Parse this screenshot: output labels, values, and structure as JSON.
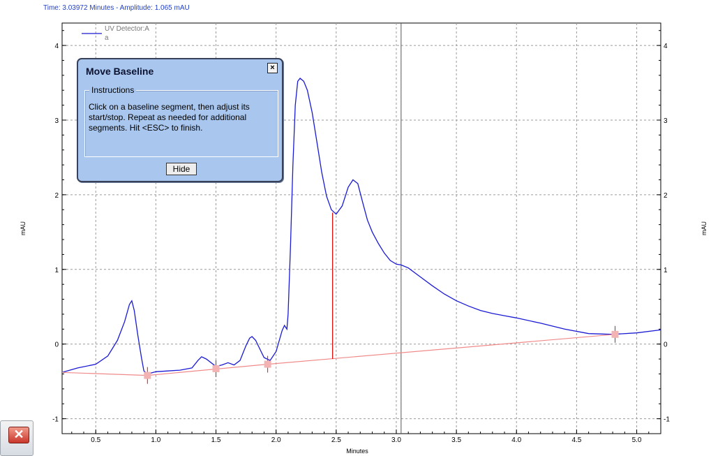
{
  "status_text": "Time:  3.03972 Minutes - Amplitude:  1.065 mAU",
  "dialog": {
    "title": "Move Baseline",
    "close_glyph": "×",
    "group_label": "Instructions",
    "instructions": "Click on a baseline segment, then adjust its start/stop. Repeat as needed for additional segments. Hit <ESC> to finish.",
    "hide_label": "Hide"
  },
  "close_widget_glyph": "✕",
  "chart_data": {
    "type": "line",
    "xlabel": "Minutes",
    "ylabel": "mAU",
    "ylabel_right": "mAU",
    "xlim": [
      0.22,
      5.2
    ],
    "ylim": [
      -1.2,
      4.3
    ],
    "xticks": [
      0.5,
      1.0,
      1.5,
      2.0,
      2.5,
      3.0,
      3.5,
      4.0,
      4.5,
      5.0
    ],
    "xtick_labels": [
      "0.5",
      "1.0",
      "1.5",
      "2.0",
      "2.5",
      "3.0",
      "3.5",
      "4.0",
      "4.5",
      "5.0"
    ],
    "yticks": [
      -1,
      0,
      1,
      2,
      3,
      4
    ],
    "ytick_labels": [
      "-1",
      "0",
      "1",
      "2",
      "3",
      "4"
    ],
    "grid": true,
    "legend": {
      "position": "top-left",
      "entries": [
        "UV Detector:A",
        "a"
      ]
    },
    "series": [
      {
        "name": "UV Detector:A",
        "color": "#1a1ad4",
        "x": [
          0.22,
          0.35,
          0.5,
          0.6,
          0.68,
          0.74,
          0.78,
          0.8,
          0.82,
          0.85,
          0.88,
          0.9,
          0.93,
          1.0,
          1.1,
          1.2,
          1.3,
          1.35,
          1.38,
          1.42,
          1.5,
          1.55,
          1.6,
          1.65,
          1.7,
          1.75,
          1.78,
          1.8,
          1.83,
          1.86,
          1.9,
          1.95,
          2.0,
          2.05,
          2.07,
          2.09,
          2.1,
          2.12,
          2.14,
          2.16,
          2.18,
          2.2,
          2.23,
          2.26,
          2.3,
          2.34,
          2.38,
          2.42,
          2.46,
          2.5,
          2.55,
          2.6,
          2.64,
          2.68,
          2.72,
          2.76,
          2.8,
          2.85,
          2.9,
          2.95,
          3.0,
          3.04,
          3.1,
          3.2,
          3.3,
          3.4,
          3.5,
          3.6,
          3.7,
          3.8,
          3.9,
          4.0,
          4.2,
          4.4,
          4.6,
          4.8,
          5.0,
          5.2
        ],
        "y": [
          -0.38,
          -0.32,
          -0.27,
          -0.16,
          0.05,
          0.3,
          0.53,
          0.58,
          0.45,
          0.12,
          -0.18,
          -0.36,
          -0.4,
          -0.37,
          -0.36,
          -0.35,
          -0.32,
          -0.22,
          -0.17,
          -0.2,
          -0.3,
          -0.28,
          -0.25,
          -0.28,
          -0.22,
          -0.02,
          0.08,
          0.1,
          0.05,
          -0.05,
          -0.18,
          -0.22,
          -0.1,
          0.18,
          0.25,
          0.2,
          0.4,
          1.3,
          2.4,
          3.2,
          3.52,
          3.56,
          3.52,
          3.4,
          3.1,
          2.7,
          2.3,
          1.98,
          1.8,
          1.74,
          1.85,
          2.1,
          2.2,
          2.15,
          1.9,
          1.66,
          1.5,
          1.35,
          1.22,
          1.12,
          1.07,
          1.06,
          1.02,
          0.9,
          0.78,
          0.67,
          0.58,
          0.51,
          0.45,
          0.41,
          0.38,
          0.35,
          0.28,
          0.2,
          0.14,
          0.13,
          0.15,
          0.19
        ]
      },
      {
        "name": "baseline",
        "color": "#f08a8a",
        "x": [
          0.22,
          0.93,
          1.93,
          4.82
        ],
        "y": [
          -0.38,
          -0.42,
          -0.27,
          0.13
        ]
      }
    ],
    "markers": [
      {
        "x": 0.93,
        "y": -0.42
      },
      {
        "x": 1.5,
        "y": -0.33
      },
      {
        "x": 1.93,
        "y": -0.27
      },
      {
        "x": 4.82,
        "y": 0.13
      }
    ],
    "drop_lines": [
      {
        "x": 2.47,
        "y_bottom": -0.2,
        "y_top": 1.76
      }
    ],
    "cursor_x": 3.04
  }
}
